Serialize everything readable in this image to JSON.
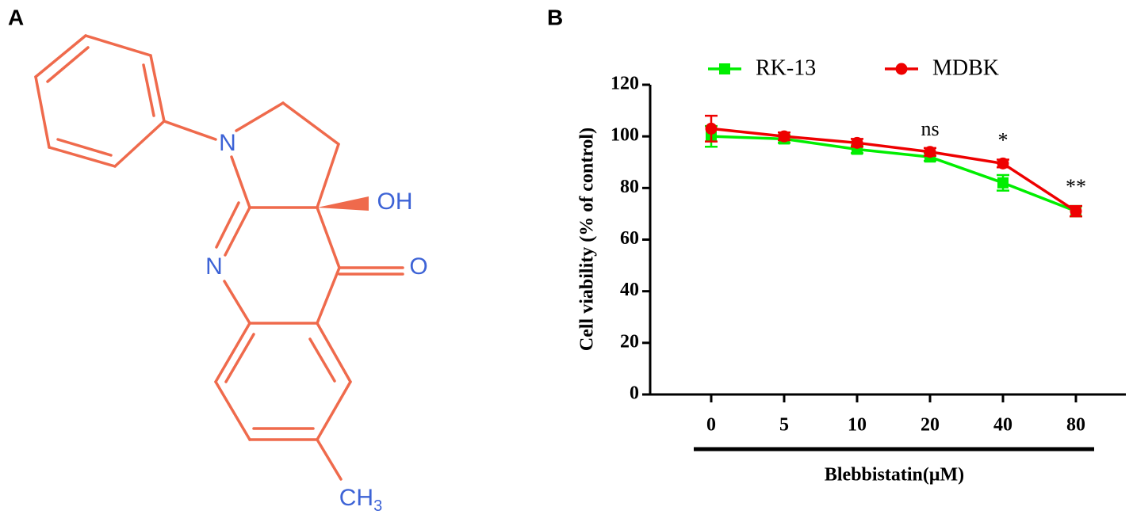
{
  "panel_a": {
    "label": "A",
    "atoms": {
      "n1": "N",
      "oh": "OH",
      "n2": "N",
      "o": "O",
      "methyl": {
        "main": "CH",
        "sub": "3"
      }
    }
  },
  "chart_data": {
    "type": "line",
    "panel_label": "B",
    "x_label": "Blebbistatin(μM)",
    "y_label": "Cell viability (% of control)",
    "categories": [
      "0",
      "5",
      "10",
      "20",
      "40",
      "80"
    ],
    "series": [
      {
        "name": "RK-13",
        "color": "#00ee00",
        "marker": "square",
        "values": [
          100,
          99,
          95,
          92,
          82,
          71
        ],
        "errors": [
          4,
          1.5,
          1.5,
          1.5,
          3,
          2
        ]
      },
      {
        "name": "MDBK",
        "color": "#ee0000",
        "marker": "circle",
        "values": [
          103,
          100,
          97.5,
          94,
          89.5,
          71
        ],
        "errors": [
          5,
          1.5,
          1.5,
          1.5,
          1.5,
          2
        ]
      }
    ],
    "annotations": [
      {
        "text": "ns",
        "x": "20"
      },
      {
        "text": "*",
        "x": "40"
      },
      {
        "text": "**",
        "x": "80"
      }
    ],
    "ylim": [
      0,
      120
    ],
    "yticks": [
      0,
      20,
      40,
      60,
      80,
      100,
      120
    ],
    "legend": "top"
  }
}
